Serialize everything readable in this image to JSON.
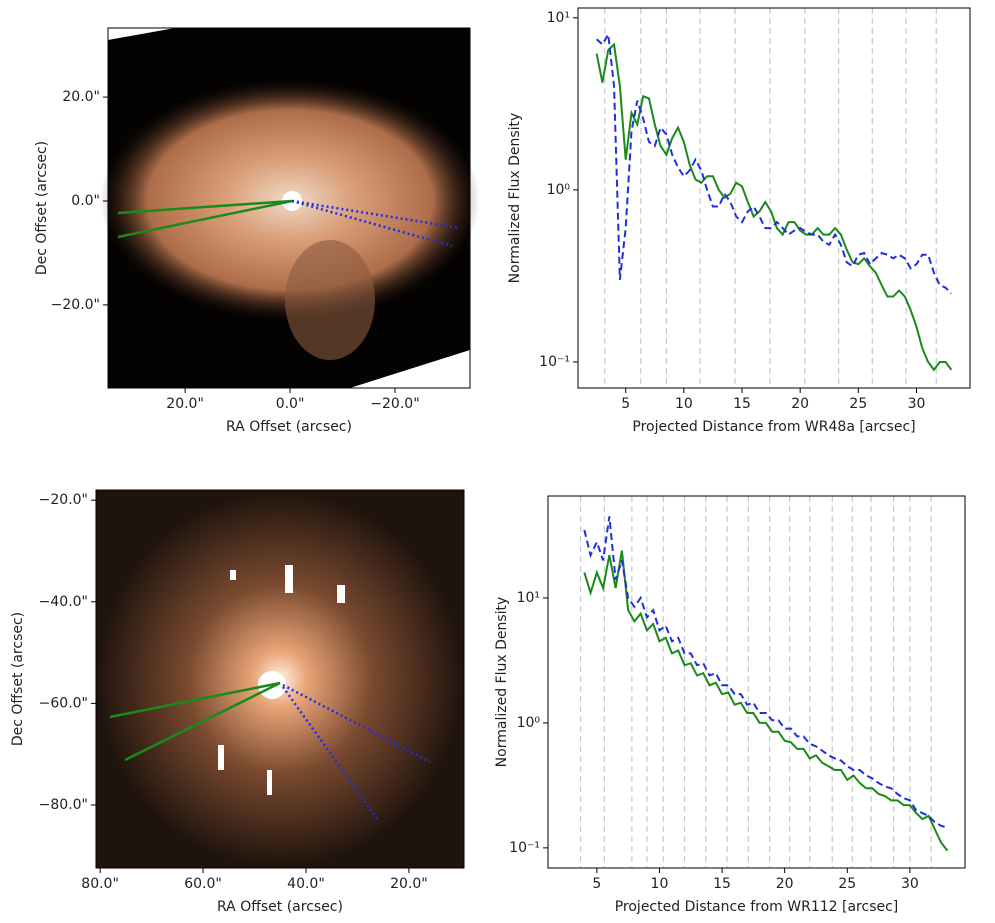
{
  "chart_data": [
    {
      "type": "image",
      "xlabel": "RA Offset (arcsec)",
      "ylabel": "Dec Offset (arcsec)",
      "xlim": [
        34.7,
        -34.3
      ],
      "ylim": [
        -36,
        33.3
      ],
      "xticks": [
        {
          "value": 20,
          "label": "20.0\""
        },
        {
          "value": 0,
          "label": "0.0\""
        },
        {
          "value": -20,
          "label": "−20.0\""
        }
      ],
      "yticks": [
        {
          "value": 20,
          "label": "20.0\""
        },
        {
          "value": 0,
          "label": "0.0\""
        },
        {
          "value": -20,
          "label": "−20.0\""
        }
      ]
    },
    {
      "type": "line",
      "xlabel": "Projected Distance from WR48a [arcsec]",
      "ylabel": "Normalized Flux Density",
      "log_y": true,
      "xlim": [
        0.9,
        34.6
      ],
      "ylim": [
        0.0706,
        11.4
      ],
      "xticks": [
        5,
        10,
        15,
        20,
        25,
        30
      ],
      "yticks": [
        {
          "value": 0.1,
          "label": "10⁻¹"
        },
        {
          "value": 1,
          "label": "10⁰"
        },
        {
          "value": 10,
          "label": "10¹"
        }
      ],
      "vlines": [
        3.2,
        6.3,
        8.5,
        11.4,
        14.4,
        17.4,
        20.4,
        23.3,
        26.2,
        29.1,
        31.7
      ],
      "x": [
        2.5,
        3,
        3.5,
        4,
        4.5,
        5,
        5.5,
        6,
        6.5,
        7,
        7.5,
        8,
        8.5,
        9,
        9.5,
        10,
        10.5,
        11,
        11.5,
        12,
        12.5,
        13,
        13.5,
        14,
        14.5,
        15,
        15.5,
        16,
        16.5,
        17,
        17.5,
        18,
        18.5,
        19,
        19.5,
        20,
        20.5,
        21,
        21.5,
        22,
        22.5,
        23,
        23.5,
        24,
        24.5,
        25,
        25.5,
        26,
        26.5,
        27,
        27.5,
        28,
        28.5,
        29,
        29.5,
        30,
        30.5,
        31,
        31.5,
        32,
        32.5,
        33
      ],
      "series": [
        {
          "color": "#1a8a1a",
          "style": "solid",
          "values": [
            6.2,
            4.2,
            6.5,
            7.0,
            4.0,
            1.5,
            2.8,
            2.4,
            3.5,
            3.4,
            2.4,
            1.8,
            1.6,
            2.0,
            2.3,
            1.9,
            1.4,
            1.15,
            1.1,
            1.2,
            1.2,
            1.0,
            0.9,
            0.95,
            1.1,
            1.05,
            0.85,
            0.7,
            0.75,
            0.85,
            0.75,
            0.6,
            0.55,
            0.65,
            0.65,
            0.58,
            0.55,
            0.55,
            0.6,
            0.55,
            0.55,
            0.6,
            0.55,
            0.45,
            0.38,
            0.37,
            0.4,
            0.36,
            0.33,
            0.28,
            0.24,
            0.24,
            0.26,
            0.24,
            0.2,
            0.16,
            0.12,
            0.1,
            0.09,
            0.1,
            0.1,
            0.09
          ]
        },
        {
          "color": "#1f2fe0",
          "style": "dashed",
          "values": [
            7.5,
            7.0,
            8.0,
            4.0,
            0.3,
            0.6,
            2.2,
            3.3,
            2.6,
            1.9,
            1.8,
            2.3,
            2.1,
            1.6,
            1.35,
            1.2,
            1.3,
            1.5,
            1.3,
            1.0,
            0.8,
            0.8,
            0.95,
            0.85,
            0.7,
            0.65,
            0.75,
            0.8,
            0.7,
            0.6,
            0.6,
            0.65,
            0.6,
            0.55,
            0.58,
            0.6,
            0.57,
            0.55,
            0.55,
            0.5,
            0.48,
            0.55,
            0.48,
            0.38,
            0.36,
            0.42,
            0.43,
            0.37,
            0.4,
            0.43,
            0.42,
            0.4,
            0.42,
            0.4,
            0.35,
            0.37,
            0.42,
            0.42,
            0.33,
            0.28,
            0.27,
            0.25
          ]
        }
      ]
    },
    {
      "type": "image",
      "xlabel": "RA Offset (arcsec)",
      "ylabel": "Dec Offset (arcsec)",
      "xlim": [
        80.8,
        9.3
      ],
      "ylim": [
        -92.4,
        -18
      ],
      "xticks": [
        {
          "value": 80,
          "label": "80.0\""
        },
        {
          "value": 60,
          "label": "60.0\""
        },
        {
          "value": 40,
          "label": "40.0\""
        },
        {
          "value": 20,
          "label": "20.0\""
        }
      ],
      "yticks": [
        {
          "value": -20,
          "label": "−20.0\""
        },
        {
          "value": -40,
          "label": "−40.0\""
        },
        {
          "value": -60,
          "label": "−60.0\""
        },
        {
          "value": -80,
          "label": "−80.0\""
        }
      ]
    },
    {
      "type": "line",
      "xlabel": "Projected Distance from WR112 [arcsec]",
      "ylabel": "Normalized Flux Density",
      "log_y": true,
      "xlim": [
        1.1,
        34.4
      ],
      "ylim": [
        0.069,
        65.5
      ],
      "xticks": [
        5,
        10,
        15,
        20,
        25,
        30
      ],
      "yticks": [
        {
          "value": 0.1,
          "label": "10⁻¹"
        },
        {
          "value": 1,
          "label": "10⁰"
        },
        {
          "value": 10,
          "label": "10¹"
        }
      ],
      "vlines": [
        3.7,
        5.6,
        7.8,
        9.0,
        10.3,
        12.0,
        13.7,
        15.4,
        17.1,
        18.8,
        20.4,
        22.0,
        23.8,
        25.4,
        26.9,
        28.7,
        30.0,
        31.7
      ],
      "x": [
        4,
        4.5,
        5,
        5.5,
        6,
        6.5,
        7,
        7.5,
        8,
        8.5,
        9,
        9.5,
        10,
        10.5,
        11,
        11.5,
        12,
        12.5,
        13,
        13.5,
        14,
        14.5,
        15,
        15.5,
        16,
        16.5,
        17,
        17.5,
        18,
        18.5,
        19,
        19.5,
        20,
        20.5,
        21,
        21.5,
        22,
        22.5,
        23,
        23.5,
        24,
        24.5,
        25,
        25.5,
        26,
        26.5,
        27,
        27.5,
        28,
        28.5,
        29,
        29.5,
        30,
        30.5,
        31,
        31.5,
        32,
        32.5,
        33
      ],
      "series": [
        {
          "color": "#1a8a1a",
          "style": "solid",
          "values": [
            16,
            11,
            16,
            12,
            22,
            12,
            24,
            8,
            6.5,
            7.5,
            5.5,
            6.2,
            4.5,
            4.8,
            3.6,
            3.8,
            2.9,
            3.0,
            2.4,
            2.5,
            2.0,
            2.1,
            1.7,
            1.75,
            1.4,
            1.45,
            1.2,
            1.2,
            1.0,
            1.0,
            0.85,
            0.85,
            0.72,
            0.7,
            0.62,
            0.62,
            0.52,
            0.55,
            0.48,
            0.45,
            0.42,
            0.42,
            0.35,
            0.38,
            0.33,
            0.3,
            0.3,
            0.27,
            0.26,
            0.24,
            0.24,
            0.22,
            0.22,
            0.19,
            0.17,
            0.18,
            0.14,
            0.11,
            0.095
          ]
        },
        {
          "color": "#1f2fe0",
          "style": "dashed",
          "values": [
            35,
            22,
            28,
            20,
            45,
            14,
            20,
            10,
            8.5,
            10,
            7.0,
            8.0,
            5.5,
            6.0,
            4.5,
            4.8,
            3.6,
            3.6,
            2.9,
            3.0,
            2.4,
            2.5,
            2.0,
            2.0,
            1.7,
            1.7,
            1.4,
            1.45,
            1.2,
            1.2,
            1.05,
            1.05,
            0.9,
            0.9,
            0.78,
            0.78,
            0.68,
            0.65,
            0.6,
            0.55,
            0.52,
            0.5,
            0.45,
            0.42,
            0.42,
            0.38,
            0.36,
            0.33,
            0.31,
            0.3,
            0.27,
            0.25,
            0.24,
            0.2,
            0.19,
            0.18,
            0.16,
            0.15,
            0.145
          ]
        }
      ]
    }
  ]
}
